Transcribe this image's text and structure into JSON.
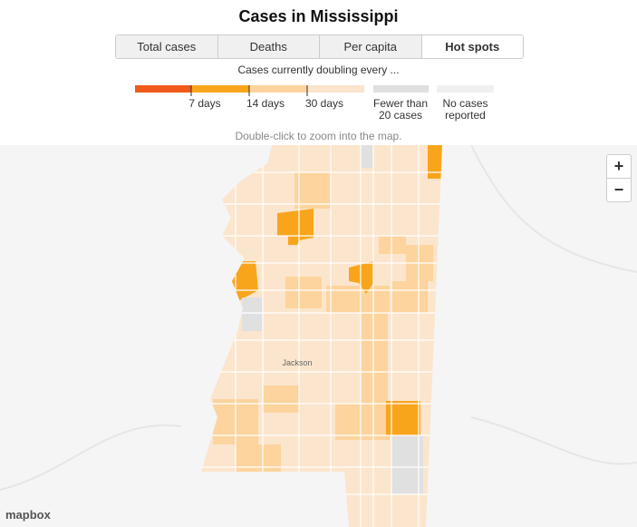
{
  "header": {
    "title": "Cases in Mississippi"
  },
  "tabs": [
    {
      "label": "Total cases",
      "active": false
    },
    {
      "label": "Deaths",
      "active": false
    },
    {
      "label": "Per capita",
      "active": false
    },
    {
      "label": "Hot spots",
      "active": true
    }
  ],
  "legend": {
    "caption": "Cases currently doubling every ...",
    "ticks": [
      "7 days",
      "14 days",
      "30 days"
    ],
    "categories": [
      "Fewer than 20 cases",
      "No cases reported"
    ]
  },
  "note": "Double-click to zoom into the map.",
  "map": {
    "labels": [
      "Jackson"
    ],
    "zoom_in": "+",
    "zoom_out": "−",
    "attribution": "mapbox"
  }
}
